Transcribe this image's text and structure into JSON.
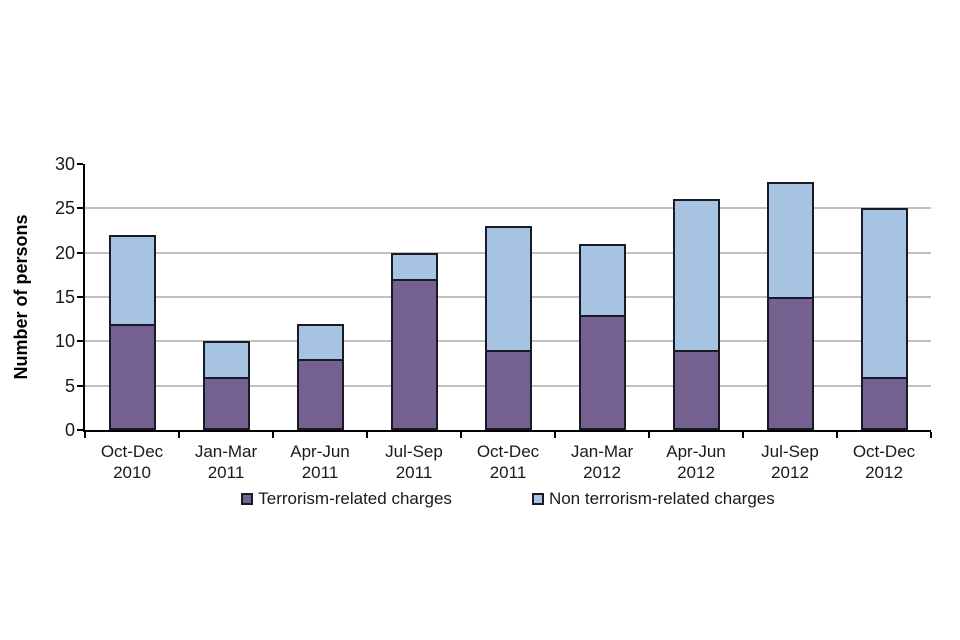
{
  "chart_data": {
    "type": "bar",
    "stacked": true,
    "title": "",
    "xlabel": "",
    "ylabel": "Number of persons",
    "ylim": [
      0,
      30
    ],
    "ytick_step": 5,
    "grid": true,
    "legend_position": "bottom",
    "categories": [
      "Oct-Dec 2010",
      "Jan-Mar 2011",
      "Apr-Jun 2011",
      "Jul-Sep 2011",
      "Oct-Dec 2011",
      "Jan-Mar 2012",
      "Apr-Jun 2012",
      "Jul-Sep 2012",
      "Oct-Dec 2012"
    ],
    "series": [
      {
        "name": "Terrorism-related charges",
        "color": "#75618F",
        "values": [
          12,
          6,
          8,
          17,
          9,
          13,
          9,
          15,
          6
        ]
      },
      {
        "name": "Non terrorism-related charges",
        "color": "#A7C3E2",
        "values": [
          10,
          4,
          4,
          3,
          14,
          8,
          17,
          13,
          19
        ]
      }
    ],
    "totals": [
      22,
      10,
      12,
      20,
      23,
      21,
      26,
      28,
      25
    ]
  },
  "style": {
    "bar_border_color": "#1A1A26",
    "gridline_color": "#C0C0C0",
    "axis_color": "#000000",
    "text_color": "#1A1A1A",
    "background_color": "#FFFFFF"
  }
}
